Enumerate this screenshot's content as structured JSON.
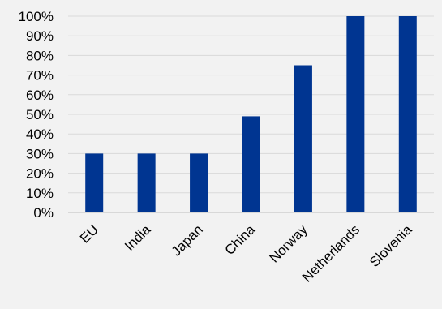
{
  "chart_data": {
    "type": "bar",
    "categories": [
      "EU",
      "India",
      "Japan",
      "China",
      "Norway",
      "Netherlands",
      "Slovenia"
    ],
    "values": [
      30,
      30,
      30,
      49,
      75,
      100,
      100
    ],
    "ylim": [
      0,
      100
    ],
    "yticks": [
      "0%",
      "10%",
      "20%",
      "30%",
      "40%",
      "50%",
      "60%",
      "70%",
      "80%",
      "90%",
      "100%"
    ],
    "grid": true,
    "bar_color": "#003591",
    "background": "#f2f2f2",
    "title": "",
    "xlabel": "",
    "ylabel": ""
  }
}
